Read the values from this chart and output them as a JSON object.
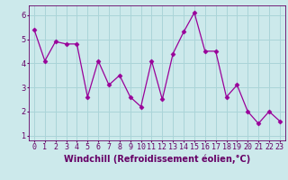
{
  "x": [
    0,
    1,
    2,
    3,
    4,
    5,
    6,
    7,
    8,
    9,
    10,
    11,
    12,
    13,
    14,
    15,
    16,
    17,
    18,
    19,
    20,
    21,
    22,
    23
  ],
  "y": [
    5.4,
    4.1,
    4.9,
    4.8,
    4.8,
    2.6,
    4.1,
    3.1,
    3.5,
    2.6,
    2.2,
    4.1,
    2.5,
    4.4,
    5.3,
    6.1,
    4.5,
    4.5,
    2.6,
    3.1,
    2.0,
    1.5,
    2.0,
    1.6
  ],
  "line_color": "#990099",
  "marker": "D",
  "marker_size": 2.5,
  "xlabel": "Windchill (Refroidissement éolien,°C)",
  "xlabel_fontsize": 7,
  "ylabel_ticks": [
    1,
    2,
    3,
    4,
    5,
    6
  ],
  "xlim": [
    -0.5,
    23.5
  ],
  "ylim": [
    0.8,
    6.4
  ],
  "bg_color": "#cce9eb",
  "grid_color": "#aad4d8",
  "tick_fontsize": 6,
  "xlabel_color": "#660066",
  "tick_color": "#660066",
  "spine_color": "#660066"
}
